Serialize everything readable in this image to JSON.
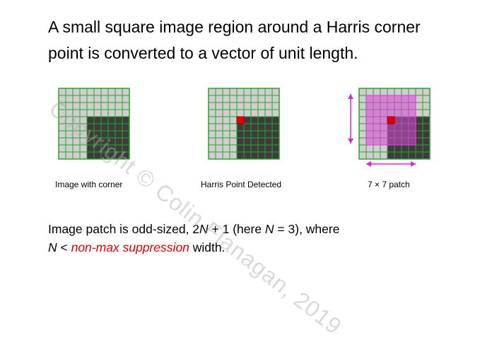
{
  "slide": {
    "title_line1": "A small square image region around a Harris corner",
    "title_line2": "point is converted to a vector of unit length.",
    "captions": {
      "panel1": "Image with corner",
      "panel2": "Harris Point Detected",
      "panel3": "7 × 7 patch"
    },
    "note": {
      "part1": "Image patch is odd-sized, 2",
      "N1": "N",
      "part2": " + 1 (here ",
      "N2": "N",
      "part3": " = 3),  where",
      "N3": "N",
      "part4": " < ",
      "highlight": "non-max suppression",
      "part5": " width."
    },
    "watermark": "Copyright © Colin Flanagan, 2019"
  },
  "colors": {
    "grid_line": "#2fa02f",
    "light_cell": "#cfcfcf",
    "dark_cell": "#3c3c3c",
    "corner_point": "#e00000",
    "patch_fill": "#e040e0",
    "arrow": "#e020e0",
    "highlight_text": "#e00000"
  },
  "grid": {
    "rows": 10,
    "cols": 10,
    "dark_region": {
      "from_row": 4,
      "from_col": 4
    },
    "corner_cell": {
      "row": 4,
      "col": 4
    },
    "patch_size": 7
  }
}
